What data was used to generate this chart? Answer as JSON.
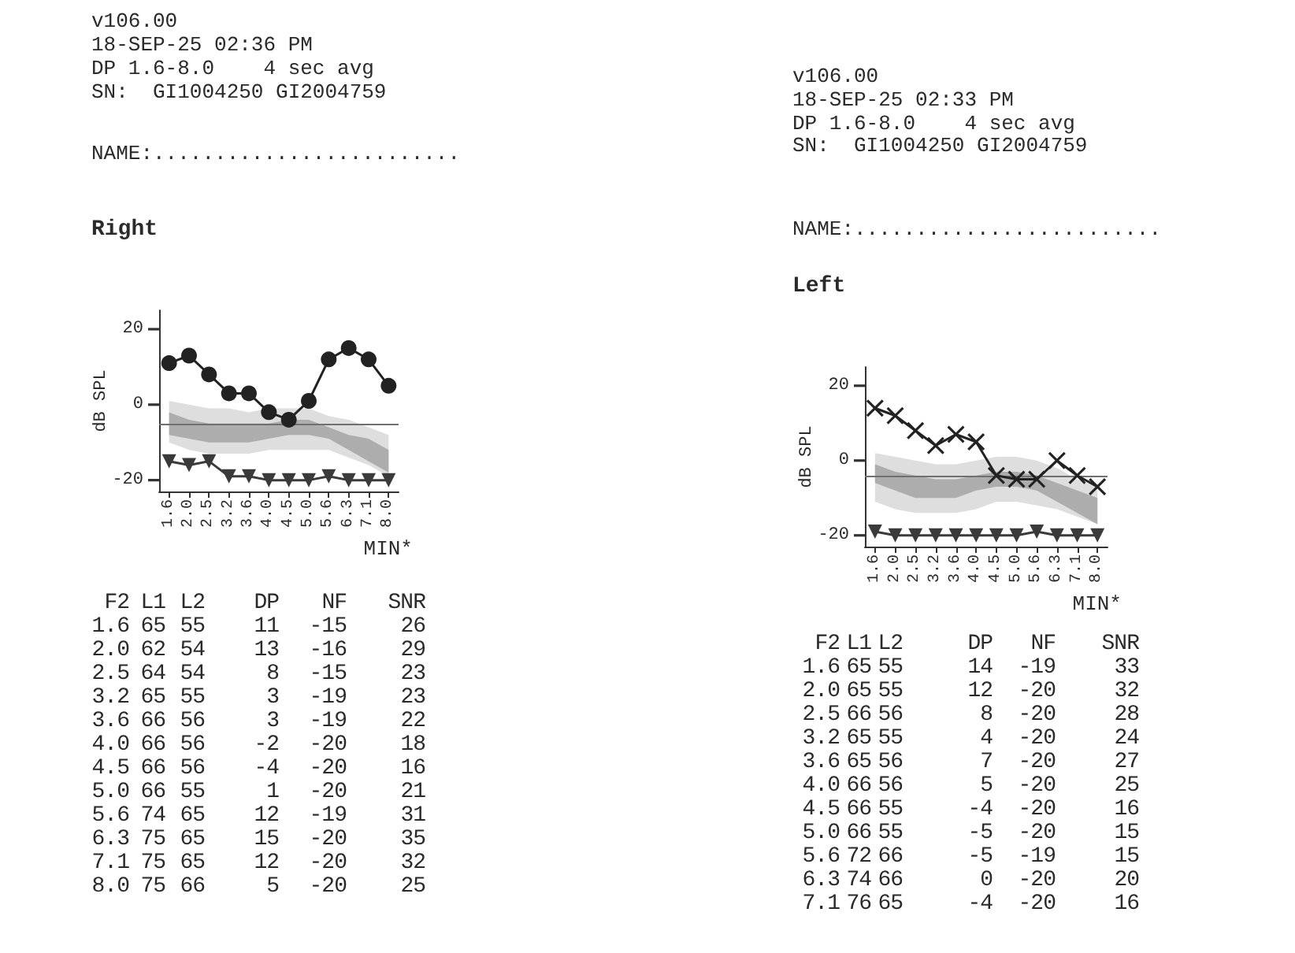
{
  "chart_data": [
    {
      "type": "line",
      "title": "Right",
      "annotations": [
        "v106.00",
        "18-SEP-25 02:36 PM",
        "DP 1.6-8.0    4 sec avg",
        "SN:  GI1004250 GI2004759",
        "NAME:........................."
      ],
      "xlabel": "MIN*",
      "ylabel": "dB SPL",
      "categories": [
        "1.6",
        "2.0",
        "2.5",
        "3.2",
        "3.6",
        "4.0",
        "4.5",
        "5.0",
        "5.6",
        "6.3",
        "7.1",
        "8.0"
      ],
      "ylim": [
        -23,
        25
      ],
      "yticks": [
        -20,
        0,
        20
      ],
      "ref_lines": [
        {
          "axis": "y",
          "value": -5,
          "color": "#707070"
        }
      ],
      "series": [
        {
          "type": "area",
          "color": "#dedede",
          "values": [
            null,
            null,
            null,
            null,
            null,
            null,
            null,
            null,
            null,
            null,
            null,
            null
          ],
          "lower": [
            -10,
            -12,
            -13,
            -13,
            -13,
            -12,
            -12,
            -12,
            -12,
            -14,
            -16,
            -19
          ],
          "upper": [
            1,
            0,
            -1,
            -1,
            -2,
            -1,
            -1,
            -1,
            -3,
            -4,
            -6,
            -8
          ]
        },
        {
          "type": "area",
          "color": "#adadad",
          "values": [
            null,
            null,
            null,
            null,
            null,
            null,
            null,
            null,
            null,
            null,
            null,
            null
          ],
          "lower": [
            -8,
            -9,
            -10,
            -10,
            -10,
            -9,
            -8,
            -8,
            -9,
            -12,
            -15,
            -18
          ],
          "upper": [
            -2,
            -4,
            -5,
            -5,
            -5,
            -5,
            -4,
            -4,
            -6,
            -8,
            -9,
            -12
          ]
        },
        {
          "color": "#222222",
          "marker": "circle",
          "values": [
            11,
            13,
            8,
            3,
            3,
            -2,
            -4,
            1,
            12,
            15,
            12,
            5
          ]
        },
        {
          "color": "#3a3a3a",
          "marker": "triangle",
          "values": [
            -15,
            -16,
            -15,
            -19,
            -19,
            -20,
            -20,
            -20,
            -19,
            -20,
            -20,
            -20
          ]
        }
      ]
    },
    {
      "type": "other",
      "xlabel": "F2",
      "categories": [
        "1.6",
        "2.0",
        "2.5",
        "3.2",
        "3.6",
        "4.0",
        "4.5",
        "5.0",
        "5.6",
        "6.3",
        "7.1",
        "8.0"
      ],
      "data_labels": true,
      "series": [
        {
          "name": "L1",
          "values": [
            65,
            62,
            64,
            65,
            66,
            66,
            66,
            66,
            74,
            75,
            75,
            75
          ]
        },
        {
          "name": "L2",
          "values": [
            55,
            54,
            54,
            55,
            56,
            56,
            56,
            55,
            65,
            65,
            65,
            66
          ]
        },
        {
          "name": "DP",
          "values": [
            11,
            13,
            8,
            3,
            3,
            -2,
            -4,
            1,
            12,
            15,
            12,
            5
          ]
        },
        {
          "name": "NF",
          "values": [
            -15,
            -16,
            -15,
            -19,
            -19,
            -20,
            -20,
            -20,
            -19,
            -20,
            -20,
            -20
          ]
        },
        {
          "name": "SNR",
          "values": [
            26,
            29,
            23,
            23,
            22,
            18,
            16,
            21,
            31,
            35,
            32,
            25
          ]
        }
      ]
    },
    {
      "type": "line",
      "title": "Left",
      "annotations": [
        "v106.00",
        "18-SEP-25 02:33 PM",
        "DP 1.6-8.0    4 sec avg",
        "SN:  GI1004250 GI2004759",
        "NAME:........................."
      ],
      "xlabel": "MIN*",
      "ylabel": "dB SPL",
      "categories": [
        "1.6",
        "2.0",
        "2.5",
        "3.2",
        "3.6",
        "4.0",
        "4.5",
        "5.0",
        "5.6",
        "6.3",
        "7.1",
        "8.0"
      ],
      "ylim": [
        -23,
        25
      ],
      "yticks": [
        -20,
        0,
        20
      ],
      "ref_lines": [
        {
          "axis": "y",
          "value": -4,
          "color": "#707070"
        }
      ],
      "series": [
        {
          "type": "area",
          "color": "#dedede",
          "values": [
            null,
            null,
            null,
            null,
            null,
            null,
            null,
            null,
            null,
            null,
            null,
            null
          ],
          "lower": [
            -11,
            -13,
            -14,
            -14,
            -14,
            -13,
            -11,
            -11,
            -12,
            -13,
            -15,
            -17
          ],
          "upper": [
            2,
            1,
            0,
            -1,
            -1,
            0,
            1,
            1,
            0,
            -2,
            -5,
            -7
          ]
        },
        {
          "type": "area",
          "color": "#adadad",
          "values": [
            null,
            null,
            null,
            null,
            null,
            null,
            null,
            null,
            null,
            null,
            null,
            null
          ],
          "lower": [
            -6,
            -8,
            -10,
            -10,
            -10,
            -8,
            -7,
            -7,
            -8,
            -11,
            -14,
            -17
          ],
          "upper": [
            -1,
            -3,
            -4,
            -5,
            -5,
            -4,
            -3,
            -3,
            -4,
            -6,
            -8,
            -10
          ]
        },
        {
          "color": "#222222",
          "marker": "cross",
          "values": [
            14,
            12,
            8,
            4,
            7,
            5,
            -4,
            -5,
            -5,
            0,
            -4,
            -7
          ]
        },
        {
          "color": "#3a3a3a",
          "marker": "triangle",
          "values": [
            -19,
            -20,
            -20,
            -20,
            -20,
            -20,
            -20,
            -20,
            -19,
            -20,
            -20,
            -20
          ]
        }
      ]
    },
    {
      "type": "other",
      "xlabel": "F2",
      "categories": [
        "1.6",
        "2.0",
        "2.5",
        "3.2",
        "3.6",
        "4.0",
        "4.5",
        "5.0",
        "5.6",
        "6.3",
        "7.1"
      ],
      "data_labels": true,
      "series": [
        {
          "name": "L1",
          "values": [
            65,
            65,
            66,
            65,
            65,
            66,
            66,
            66,
            72,
            74,
            76
          ]
        },
        {
          "name": "L2",
          "values": [
            55,
            55,
            56,
            55,
            56,
            56,
            55,
            55,
            66,
            66,
            65
          ]
        },
        {
          "name": "DP",
          "values": [
            14,
            12,
            8,
            4,
            7,
            5,
            -4,
            -5,
            -5,
            0,
            -4
          ]
        },
        {
          "name": "NF",
          "values": [
            -19,
            -20,
            -20,
            -20,
            -20,
            -20,
            -20,
            -20,
            -19,
            -20,
            -20
          ]
        },
        {
          "name": "SNR",
          "values": [
            33,
            32,
            28,
            24,
            27,
            25,
            16,
            15,
            15,
            20,
            16
          ]
        }
      ]
    }
  ]
}
